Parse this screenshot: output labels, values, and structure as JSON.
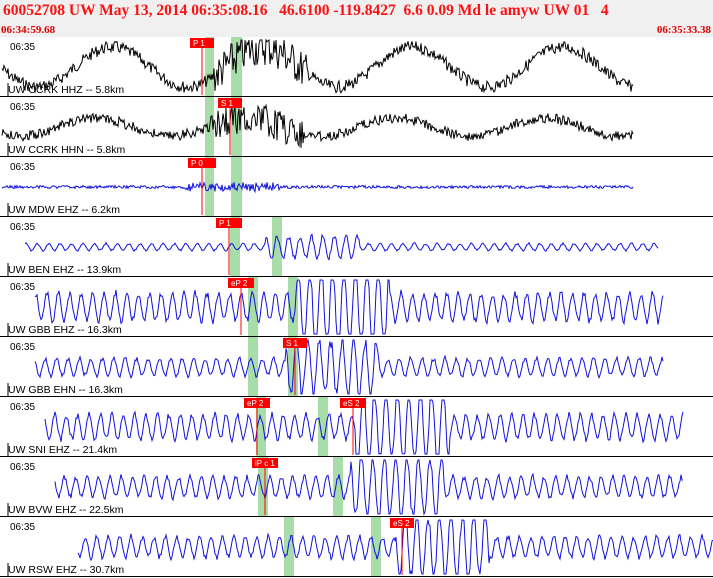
{
  "header": {
    "title": "60052708 UW May 13, 2014 06:35:08.16   46.6100 -119.8427  6.6 0.09 Md le amyw UW 01   4",
    "start_time": "06:34:59.68",
    "end_time": "06:35:33.38"
  },
  "colors": {
    "header_text": "#ff1010",
    "trace_black": "#000000",
    "trace_blue": "#1010e0",
    "pick_box": "#ff0000",
    "pick_window": "#a8dca8",
    "header_bg": "#f0f0f0"
  },
  "panels": [
    {
      "time": "06:35",
      "label": "UW CCRK HHZ -- 5.8km",
      "color": "black",
      "pick": "P 1"
    },
    {
      "time": "06:35",
      "label": "UW CCRK HHN -- 5.8km",
      "color": "black",
      "pick": "S 1"
    },
    {
      "time": "06:35",
      "label": "UW MDW EHZ -- 6.2km",
      "color": "blue",
      "pick": "P 0"
    },
    {
      "time": "06:35",
      "label": "UW BEN EHZ -- 13.9km",
      "color": "blue",
      "pick": "P 1"
    },
    {
      "time": "06:35",
      "label": "UW GBB EHZ -- 16.3km",
      "color": "blue",
      "pick": "eP 2"
    },
    {
      "time": "06:35",
      "label": "UW GBB EHN -- 16.3km",
      "color": "blue",
      "pick": "S 1"
    },
    {
      "time": "06:35",
      "label": "UW SNI EHZ -- 21.4km",
      "color": "blue",
      "pick": "eP 2",
      "pick2": "eS 2"
    },
    {
      "time": "06:35",
      "label": "UW BVW EHZ -- 22.5km",
      "color": "blue",
      "pick": "iP c 1"
    },
    {
      "time": "06:35",
      "label": "UW RSW EHZ -- 30.7km",
      "color": "blue",
      "pick": "eS 2"
    }
  ]
}
